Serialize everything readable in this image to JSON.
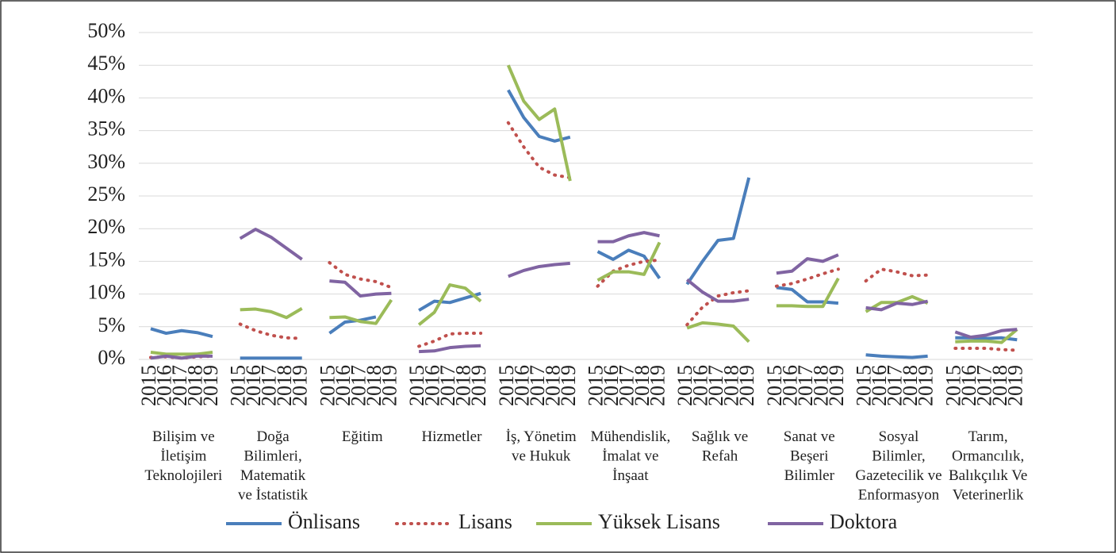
{
  "chart_data": {
    "type": "line",
    "groups": [
      [
        "Bilişim ve",
        "İletişim",
        "Teknolojileri"
      ],
      [
        "Doğa",
        "Bilimleri,",
        "Matematik",
        "ve İstatistik"
      ],
      [
        "Eğitim"
      ],
      [
        "Hizmetler"
      ],
      [
        "İş, Yönetim",
        "ve Hukuk"
      ],
      [
        "Mühendislik,",
        "İmalat ve",
        "İnşaat"
      ],
      [
        "Sağlık ve",
        "Refah"
      ],
      [
        "Sanat ve",
        "Beşeri",
        "Bilimler"
      ],
      [
        "Sosyal",
        "Bilimler,",
        "Gazetecilik ve",
        "Enformasyon"
      ],
      [
        "Tarım,",
        "Ormancılık,",
        "Balıkçılık Ve",
        "Veterinerlik"
      ]
    ],
    "x": [
      "2015",
      "2016",
      "2017",
      "2018",
      "2019"
    ],
    "series": [
      {
        "name": "Önlisans",
        "color": "#4a7ebb",
        "style": "solid",
        "values": [
          [
            4.7,
            4.0,
            4.4,
            4.1,
            3.5
          ],
          [
            0.2,
            0.2,
            0.2,
            0.2,
            0.2
          ],
          [
            4.0,
            5.7,
            6.0,
            6.5,
            null
          ],
          [
            7.5,
            8.9,
            8.7,
            9.4,
            10.1
          ],
          [
            41.2,
            37.0,
            34.1,
            33.4,
            34.0
          ],
          [
            16.5,
            15.3,
            16.7,
            15.8,
            12.4
          ],
          [
            11.5,
            15.0,
            18.2,
            18.5,
            27.8
          ],
          [
            11.0,
            10.7,
            8.8,
            8.8,
            8.6
          ],
          [
            0.7,
            0.5,
            0.4,
            0.3,
            0.5
          ],
          [
            3.3,
            3.3,
            3.2,
            3.3,
            3.0
          ]
        ]
      },
      {
        "name": "Lisans",
        "color": "#c0504d",
        "style": "dotted",
        "values": [
          [
            0.3,
            0.4,
            0.2,
            0.4,
            0.5
          ],
          [
            5.4,
            4.4,
            3.7,
            3.3,
            3.2
          ],
          [
            14.8,
            13.0,
            12.3,
            11.9,
            11.0
          ],
          [
            2.0,
            2.8,
            3.9,
            4.0,
            4.0
          ],
          [
            36.2,
            32.5,
            29.4,
            28.2,
            27.8
          ],
          [
            11.2,
            13.5,
            14.4,
            15.0,
            15.2
          ],
          [
            5.3,
            8.0,
            9.7,
            10.2,
            10.5
          ],
          [
            11.2,
            11.6,
            12.3,
            13.1,
            13.8
          ],
          [
            12.0,
            13.8,
            13.4,
            12.8,
            12.9
          ],
          [
            1.7,
            1.7,
            1.7,
            1.5,
            1.4
          ]
        ]
      },
      {
        "name": "Yüksek Lisans",
        "color": "#9bbb59",
        "style": "solid",
        "values": [
          [
            1.1,
            0.8,
            0.8,
            0.8,
            1.1
          ],
          [
            7.6,
            7.7,
            7.3,
            6.4,
            7.8
          ],
          [
            6.4,
            6.5,
            5.8,
            5.5,
            9.1
          ],
          [
            5.3,
            7.2,
            11.4,
            10.9,
            8.9
          ],
          [
            45.0,
            39.5,
            36.7,
            38.3,
            27.3
          ],
          [
            12.1,
            13.4,
            13.4,
            13.0,
            17.9
          ],
          [
            4.8,
            5.6,
            5.4,
            5.1,
            2.7
          ],
          [
            8.2,
            8.2,
            8.1,
            8.1,
            12.4
          ],
          [
            7.3,
            8.7,
            8.7,
            9.6,
            8.6
          ],
          [
            2.7,
            2.8,
            2.8,
            2.6,
            4.6
          ]
        ]
      },
      {
        "name": "Doktora",
        "color": "#8064a2",
        "style": "solid",
        "values": [
          [
            0.2,
            0.5,
            0.2,
            0.5,
            0.5
          ],
          [
            18.5,
            19.9,
            18.7,
            17.0,
            15.3
          ],
          [
            12.0,
            11.8,
            9.7,
            10.0,
            10.1
          ],
          [
            1.2,
            1.3,
            1.8,
            2.0,
            2.1
          ],
          [
            12.7,
            13.6,
            14.2,
            14.5,
            14.7
          ],
          [
            18.0,
            18.0,
            18.9,
            19.4,
            18.9
          ],
          [
            12.2,
            10.3,
            8.9,
            8.9,
            9.2
          ],
          [
            13.2,
            13.5,
            15.4,
            15.0,
            16.0
          ],
          [
            7.9,
            7.6,
            8.6,
            8.4,
            8.9
          ],
          [
            4.2,
            3.4,
            3.7,
            4.4,
            4.6
          ]
        ]
      }
    ],
    "ylim": [
      0,
      50
    ],
    "yticks": [
      {
        "value": 0,
        "label": "0%"
      },
      {
        "value": 5,
        "label": "5%"
      },
      {
        "value": 10,
        "label": "10%"
      },
      {
        "value": 15,
        "label": "15%"
      },
      {
        "value": 20,
        "label": "20%"
      },
      {
        "value": 25,
        "label": "25%"
      },
      {
        "value": 30,
        "label": "30%"
      },
      {
        "value": 35,
        "label": "35%"
      },
      {
        "value": 40,
        "label": "40%"
      },
      {
        "value": 45,
        "label": "45%"
      },
      {
        "value": 50,
        "label": "50%"
      }
    ],
    "grid": true,
    "legend": "bottom"
  }
}
